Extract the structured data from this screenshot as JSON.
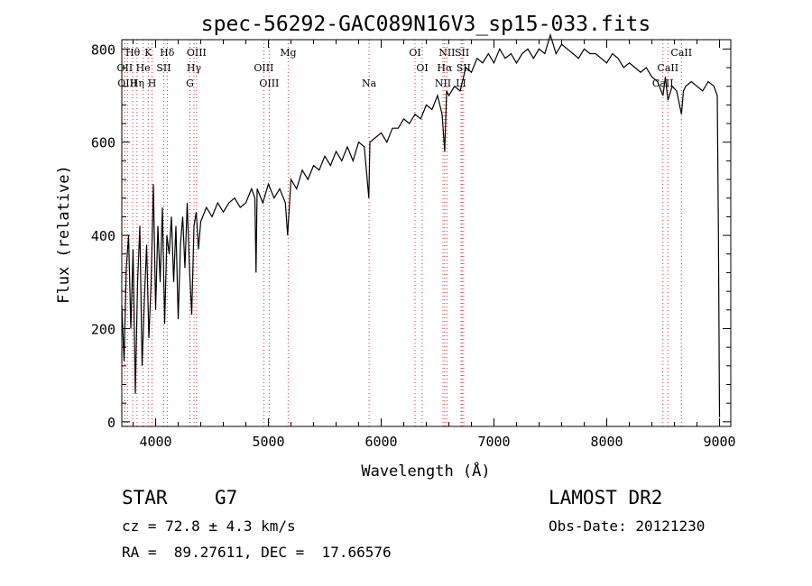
{
  "chart_data": {
    "type": "line",
    "title": "spec-56292-GAC089N16V3_sp15-033.fits",
    "xlabel": "Wavelength (Å)",
    "ylabel": "Flux (relative)",
    "xlim": [
      3700,
      9100
    ],
    "ylim": [
      -10,
      820
    ],
    "xticks": [
      4000,
      5000,
      6000,
      7000,
      8000,
      9000
    ],
    "yticks": [
      0,
      200,
      400,
      600,
      800
    ],
    "grid": false,
    "series": [
      {
        "x": [
          3700,
          3720,
          3740,
          3760,
          3780,
          3800,
          3820,
          3840,
          3860,
          3880,
          3900,
          3920,
          3940,
          3960,
          3980,
          4000,
          4020,
          4040,
          4060,
          4080,
          4100,
          4120,
          4140,
          4160,
          4180,
          4200,
          4220,
          4240,
          4260,
          4280,
          4300,
          4320,
          4340,
          4360,
          4380,
          4400,
          4450,
          4500,
          4550,
          4600,
          4650,
          4700,
          4750,
          4800,
          4850,
          4880,
          4890,
          4900,
          4950,
          5000,
          5050,
          5100,
          5150,
          5170,
          5200,
          5250,
          5300,
          5350,
          5400,
          5450,
          5500,
          5550,
          5600,
          5650,
          5700,
          5750,
          5800,
          5850,
          5890,
          5900,
          5950,
          6000,
          6050,
          6100,
          6150,
          6200,
          6250,
          6300,
          6350,
          6400,
          6450,
          6500,
          6540,
          6563,
          6580,
          6600,
          6650,
          6700,
          6750,
          6800,
          6850,
          6900,
          6950,
          7000,
          7050,
          7100,
          7150,
          7200,
          7250,
          7300,
          7350,
          7400,
          7450,
          7500,
          7550,
          7600,
          7650,
          7700,
          7750,
          7800,
          7850,
          7900,
          7950,
          8000,
          8050,
          8100,
          8150,
          8200,
          8250,
          8300,
          8350,
          8400,
          8450,
          8498,
          8520,
          8542,
          8580,
          8620,
          8662,
          8680,
          8700,
          8750,
          8800,
          8850,
          8900,
          8950,
          8980,
          8990,
          9000
        ],
        "y": [
          250,
          130,
          330,
          400,
          200,
          370,
          60,
          300,
          420,
          120,
          260,
          380,
          180,
          300,
          510,
          240,
          420,
          300,
          460,
          210,
          400,
          360,
          440,
          300,
          420,
          220,
          380,
          440,
          330,
          470,
          330,
          230,
          420,
          450,
          370,
          430,
          460,
          440,
          470,
          450,
          470,
          480,
          460,
          470,
          500,
          480,
          320,
          500,
          470,
          510,
          480,
          500,
          470,
          400,
          520,
          500,
          540,
          520,
          550,
          540,
          570,
          550,
          580,
          560,
          590,
          560,
          600,
          590,
          480,
          600,
          610,
          620,
          600,
          630,
          630,
          650,
          640,
          660,
          650,
          680,
          670,
          700,
          660,
          580,
          710,
          700,
          720,
          710,
          760,
          750,
          780,
          770,
          790,
          770,
          800,
          780,
          790,
          770,
          790,
          800,
          780,
          800,
          790,
          830,
          790,
          810,
          800,
          790,
          780,
          800,
          790,
          790,
          780,
          770,
          790,
          780,
          760,
          770,
          760,
          750,
          760,
          740,
          730,
          700,
          740,
          690,
          720,
          710,
          660,
          710,
          720,
          730,
          720,
          710,
          730,
          720,
          700,
          400,
          10
        ]
      }
    ],
    "line_labels": [
      {
        "text": "Hθ",
        "x": 3797,
        "row": 0
      },
      {
        "text": "K",
        "x": 3934,
        "row": 0
      },
      {
        "text": "Hδ",
        "x": 4102,
        "row": 0
      },
      {
        "text": "OIII",
        "x": 4363,
        "row": 0
      },
      {
        "text": "Mg",
        "x": 5175,
        "row": 0
      },
      {
        "text": "OI",
        "x": 6300,
        "row": 0
      },
      {
        "text": "NII",
        "x": 6583,
        "row": 0
      },
      {
        "text": "SII",
        "x": 6717,
        "row": 0
      },
      {
        "text": "CaII",
        "x": 8662,
        "row": 0
      },
      {
        "text": "OII",
        "x": 3727,
        "row": 1
      },
      {
        "text": "He",
        "x": 3889,
        "row": 1
      },
      {
        "text": "SII",
        "x": 4072,
        "row": 1
      },
      {
        "text": "Hγ",
        "x": 4340,
        "row": 1
      },
      {
        "text": "OIII",
        "x": 4959,
        "row": 1
      },
      {
        "text": "OI",
        "x": 6364,
        "row": 1
      },
      {
        "text": "Hα",
        "x": 6563,
        "row": 1
      },
      {
        "text": "SII",
        "x": 6731,
        "row": 1
      },
      {
        "text": "CaII",
        "x": 8542,
        "row": 1
      },
      {
        "text": "OIII",
        "x": 3750,
        "row": 2
      },
      {
        "text": "Hη",
        "x": 3835,
        "row": 2
      },
      {
        "text": "H",
        "x": 3968,
        "row": 2
      },
      {
        "text": "G",
        "x": 4304,
        "row": 2
      },
      {
        "text": "OIII",
        "x": 5007,
        "row": 2
      },
      {
        "text": "Na",
        "x": 5893,
        "row": 2
      },
      {
        "text": "NII",
        "x": 6548,
        "row": 2
      },
      {
        "text": "LI",
        "x": 6708,
        "row": 2
      },
      {
        "text": "CaII",
        "x": 8498,
        "row": 2
      }
    ],
    "line_markers": [
      3727,
      3750,
      3797,
      3835,
      3889,
      3934,
      3968,
      4072,
      4102,
      4304,
      4340,
      4363,
      4959,
      5007,
      5175,
      5893,
      6300,
      6364,
      6548,
      6563,
      6583,
      6708,
      6717,
      6731,
      8498,
      8542,
      8662
    ]
  },
  "info": {
    "obj_class": "STAR",
    "subclass": "G7",
    "survey": "LAMOST DR2",
    "cz": "cz = 72.8 ± 4.3 km/s",
    "obs_date": "Obs-Date: 20121230",
    "coords": "RA =  89.27611, DEC =  17.66576"
  },
  "colors": {
    "line_marker": "#cc3333",
    "spectrum": "#000000"
  }
}
